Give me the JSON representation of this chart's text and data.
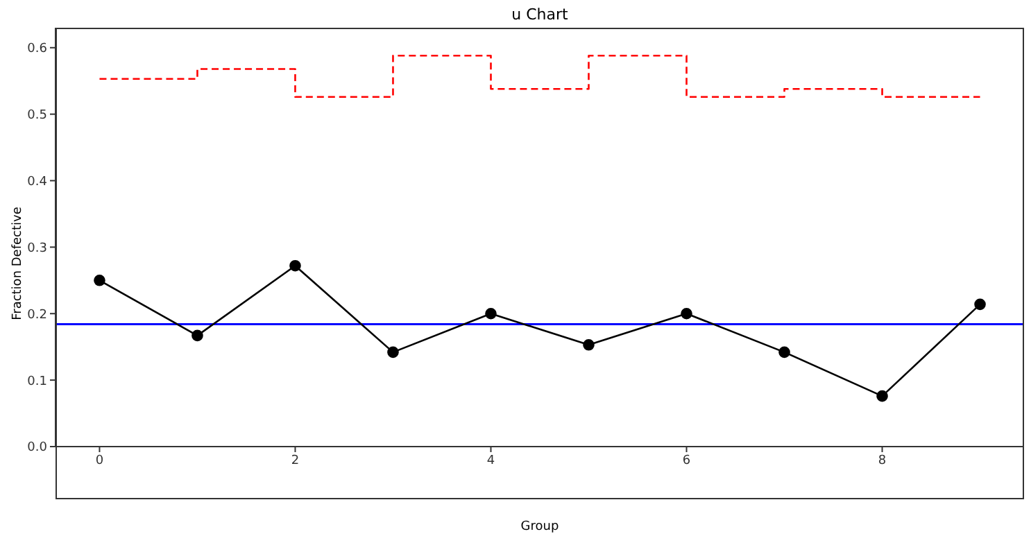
{
  "chart_data": {
    "type": "line",
    "title": "u Chart",
    "xlabel": "Group",
    "ylabel": "Fraction Defective",
    "x": [
      0,
      1,
      2,
      3,
      4,
      5,
      6,
      7,
      8,
      9
    ],
    "series": [
      {
        "type": "line",
        "color": "#000000",
        "marker": "circle",
        "line_style": "solid",
        "values": [
          0.25,
          0.167,
          0.272,
          0.142,
          0.2,
          0.153,
          0.2,
          0.142,
          0.076,
          0.214
        ]
      },
      {
        "type": "step",
        "color": "#ff0000",
        "marker": "none",
        "line_style": "dashed",
        "values": [
          0.553,
          0.568,
          0.526,
          0.588,
          0.538,
          0.588,
          0.526,
          0.538,
          0.526,
          0.526
        ]
      }
    ],
    "ref_lines": [
      {
        "axis": "y",
        "value": 0.184,
        "color": "#0000ff",
        "line_style": "solid"
      }
    ],
    "xlim": [
      -0.45,
      9.45
    ],
    "xticks": [
      0,
      2,
      4,
      6,
      8
    ],
    "ylim": [
      0,
      0.63
    ],
    "yticks": [
      {
        "value": 0,
        "label": "0.0"
      },
      0.1,
      0.2,
      0.3,
      0.4,
      0.5,
      0.6
    ],
    "grid": false,
    "legend": false
  }
}
